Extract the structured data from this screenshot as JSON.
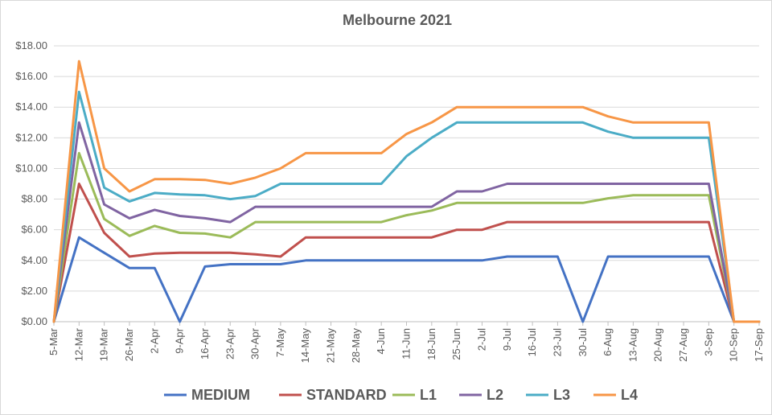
{
  "chart_data": {
    "type": "line",
    "title": "Melbourne 2021",
    "xlabel": "",
    "ylabel": "",
    "ylim": [
      0,
      18
    ],
    "y_ticks": [
      "$0.00",
      "$2.00",
      "$4.00",
      "$6.00",
      "$8.00",
      "$10.00",
      "$12.00",
      "$14.00",
      "$16.00",
      "$18.00"
    ],
    "grid": true,
    "legend_position": "bottom",
    "categories": [
      "5-Mar",
      "12-Mar",
      "19-Mar",
      "26-Mar",
      "2-Apr",
      "9-Apr",
      "16-Apr",
      "23-Apr",
      "30-Apr",
      "7-May",
      "14-May",
      "21-May",
      "28-May",
      "4-Jun",
      "11-Jun",
      "18-Jun",
      "25-Jun",
      "2-Jul",
      "9-Jul",
      "16-Jul",
      "23-Jul",
      "30-Jul",
      "6-Aug",
      "13-Aug",
      "20-Aug",
      "27-Aug",
      "3-Sep",
      "10-Sep",
      "17-Sep"
    ],
    "series": [
      {
        "name": "MEDIUM",
        "color": "#4472C4",
        "values": [
          0,
          5.5,
          4.5,
          3.5,
          3.5,
          0,
          3.6,
          3.75,
          3.75,
          3.75,
          4.0,
          4.0,
          4.0,
          4.0,
          4.0,
          4.0,
          4.0,
          4.0,
          4.25,
          4.25,
          4.25,
          0,
          4.25,
          4.25,
          4.25,
          4.25,
          4.25,
          0,
          0
        ]
      },
      {
        "name": "STANDARD",
        "color": "#C0504D",
        "values": [
          0,
          9.0,
          5.8,
          4.25,
          4.45,
          4.5,
          4.5,
          4.5,
          4.4,
          4.25,
          5.5,
          5.5,
          5.5,
          5.5,
          5.5,
          5.5,
          6.0,
          6.0,
          6.5,
          6.5,
          6.5,
          6.5,
          6.5,
          6.5,
          6.5,
          6.5,
          6.5,
          0,
          0
        ]
      },
      {
        "name": "L1",
        "color": "#9BBB59",
        "values": [
          0,
          11.0,
          6.7,
          5.6,
          6.25,
          5.8,
          5.75,
          5.5,
          6.5,
          6.5,
          6.5,
          6.5,
          6.5,
          6.5,
          6.95,
          7.25,
          7.75,
          7.75,
          7.75,
          7.75,
          7.75,
          7.75,
          8.05,
          8.25,
          8.25,
          8.25,
          8.25,
          0,
          0
        ]
      },
      {
        "name": "L2",
        "color": "#8064A2",
        "values": [
          0,
          13.0,
          7.65,
          6.75,
          7.3,
          6.9,
          6.75,
          6.5,
          7.5,
          7.5,
          7.5,
          7.5,
          7.5,
          7.5,
          7.5,
          7.5,
          8.5,
          8.5,
          9.0,
          9.0,
          9.0,
          9.0,
          9.0,
          9.0,
          9.0,
          9.0,
          9.0,
          0,
          0
        ]
      },
      {
        "name": "L3",
        "color": "#4BACC6",
        "values": [
          0,
          15.0,
          8.75,
          7.85,
          8.4,
          8.3,
          8.25,
          8.0,
          8.2,
          9.0,
          9.0,
          9.0,
          9.0,
          9.0,
          10.8,
          12.0,
          13.0,
          13.0,
          13.0,
          13.0,
          13.0,
          13.0,
          12.4,
          12.0,
          12.0,
          12.0,
          12.0,
          0,
          0
        ]
      },
      {
        "name": "L4",
        "color": "#F79646",
        "values": [
          0,
          17.0,
          10.0,
          8.5,
          9.3,
          9.3,
          9.25,
          9.0,
          9.4,
          10.0,
          11.0,
          11.0,
          11.0,
          11.0,
          12.25,
          13.0,
          14.0,
          14.0,
          14.0,
          14.0,
          14.0,
          14.0,
          13.4,
          13.0,
          13.0,
          13.0,
          13.0,
          0,
          0
        ]
      }
    ]
  }
}
